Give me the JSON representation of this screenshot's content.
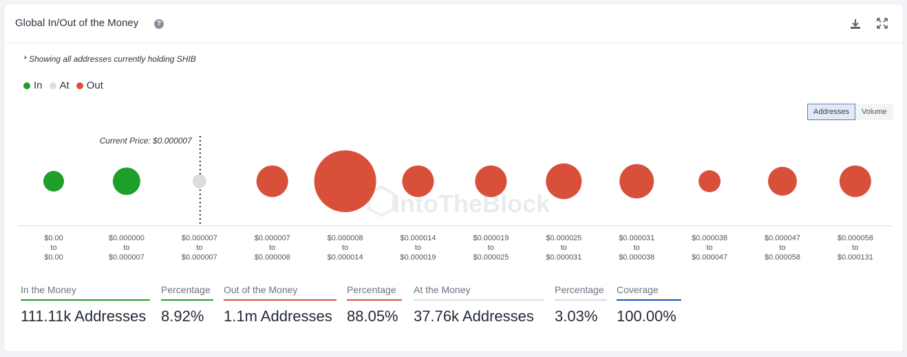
{
  "header": {
    "title": "Global In/Out of the Money",
    "help_icon": "question-circle-icon",
    "download_icon": "download-icon",
    "expand_icon": "expand-icon"
  },
  "note": "* Showing all addresses currently holding SHIB",
  "legend": [
    {
      "label": "In",
      "color": "#1e9e2b"
    },
    {
      "label": "At",
      "color": "#dcdcdc"
    },
    {
      "label": "Out",
      "color": "#d9503a"
    }
  ],
  "toggle": {
    "options": [
      "Addresses",
      "Volume"
    ],
    "selected": "Addresses"
  },
  "watermark": "IntoTheBlock",
  "chart_data": {
    "type": "bubble",
    "current_price_label": "Current Price: $0.000007",
    "current_price_after_index": 2,
    "categories": [
      {
        "from": "$0.00",
        "to": "$0.00",
        "status": "in",
        "size": 15
      },
      {
        "from": "$0.000000",
        "to": "$0.000007",
        "status": "in",
        "size": 20
      },
      {
        "from": "$0.000007",
        "to": "$0.000007",
        "status": "at",
        "size": 10
      },
      {
        "from": "$0.000007",
        "to": "$0.000008",
        "status": "out",
        "size": 23
      },
      {
        "from": "$0.000008",
        "to": "$0.000014",
        "status": "out",
        "size": 45
      },
      {
        "from": "$0.000014",
        "to": "$0.000019",
        "status": "out",
        "size": 23
      },
      {
        "from": "$0.000019",
        "to": "$0.000025",
        "status": "out",
        "size": 23
      },
      {
        "from": "$0.000025",
        "to": "$0.000031",
        "status": "out",
        "size": 26
      },
      {
        "from": "$0.000031",
        "to": "$0.000038",
        "status": "out",
        "size": 25
      },
      {
        "from": "$0.000038",
        "to": "$0.000047",
        "status": "out",
        "size": 16
      },
      {
        "from": "$0.000047",
        "to": "$0.000058",
        "status": "out",
        "size": 21
      },
      {
        "from": "$0.000058",
        "to": "$0.000131",
        "status": "out",
        "size": 23
      }
    ],
    "range_separator": "to",
    "colors": {
      "in": "#1e9e2b",
      "at": "#dcdcdc",
      "out": "#d9503a"
    }
  },
  "stats": [
    {
      "label": "In the Money",
      "value": "111.11k Addresses",
      "color": "#1e9e2b"
    },
    {
      "label": "Percentage",
      "value": "8.92%",
      "color": "#1e9e2b"
    },
    {
      "label": "Out of the Money",
      "value": "1.1m Addresses",
      "color": "#d9503a"
    },
    {
      "label": "Percentage",
      "value": "88.05%",
      "color": "#d9503a"
    },
    {
      "label": "At the Money",
      "value": "37.76k Addresses",
      "color": "#dcdcdc"
    },
    {
      "label": "Percentage",
      "value": "3.03%",
      "color": "#dcdcdc"
    },
    {
      "label": "Coverage",
      "value": "100.00%",
      "color": "#1f4fb5"
    }
  ]
}
